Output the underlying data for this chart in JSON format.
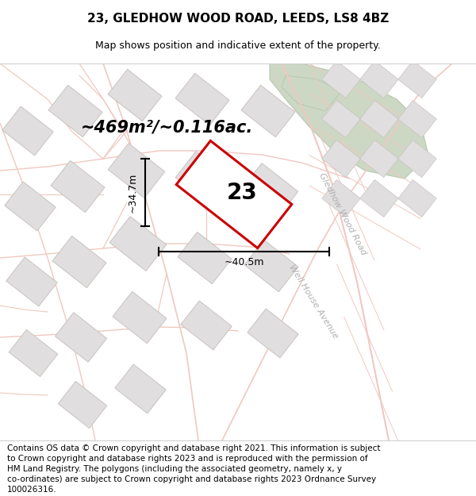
{
  "title": "23, GLEDHOW WOOD ROAD, LEEDS, LS8 4BZ",
  "subtitle": "Map shows position and indicative extent of the property.",
  "footer_line1": "Contains OS data © Crown copyright and database right 2021. This information is subject",
  "footer_line2": "to Crown copyright and database rights 2023 and is reproduced with the permission of",
  "footer_line3": "HM Land Registry. The polygons (including the associated geometry, namely x, y",
  "footer_line4": "co-ordinates) are subject to Crown copyright and database rights 2023 Ordnance Survey",
  "footer_line5": "100026316.",
  "area_label": "~469m²/~0.116ac.",
  "width_label": "~40.5m",
  "height_label": "~34.7m",
  "property_number": "23",
  "map_bg": "#f9f8f7",
  "road_color": "#f0c8c0",
  "building_face": "#e0dede",
  "building_edge": "#c8c4c0",
  "green_color": "#ccd8c4",
  "green_edge": "#b8c8b0",
  "property_outline": "#cc0000",
  "dim_color": "#000000",
  "road_label_color": "#b0b0b0",
  "title_fontsize": 11,
  "subtitle_fontsize": 9,
  "footer_fontsize": 7.5,
  "area_fontsize": 15,
  "number_fontsize": 20,
  "dim_fontsize": 9,
  "road_label_fontsize": 8
}
